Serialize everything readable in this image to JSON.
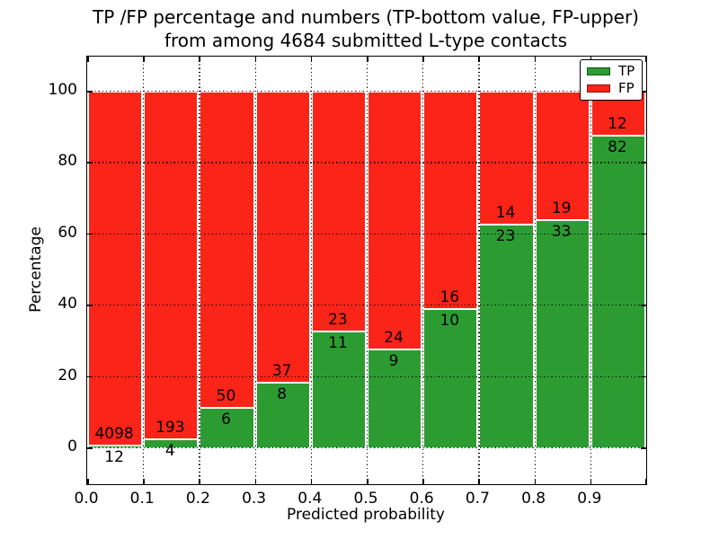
{
  "title": {
    "line1": "TP /FP percentage and numbers (TP-bottom value, FP-upper)",
    "line2": "from among 4684 submitted L-type contacts"
  },
  "axes": {
    "xlabel": "Predicted probability",
    "ylabel": "Percentage",
    "x_ticks": [
      {
        "label": "0.0",
        "value": 0.0
      },
      {
        "label": "0.1",
        "value": 0.1
      },
      {
        "label": "0.2",
        "value": 0.2
      },
      {
        "label": "0.3",
        "value": 0.3
      },
      {
        "label": "0.4",
        "value": 0.4
      },
      {
        "label": "0.5",
        "value": 0.5
      },
      {
        "label": "0.6",
        "value": 0.6
      },
      {
        "label": "0.7",
        "value": 0.7
      },
      {
        "label": "0.8",
        "value": 0.8
      },
      {
        "label": "0.9",
        "value": 0.9
      }
    ],
    "y_ticks": [
      {
        "label": "0",
        "value": 0
      },
      {
        "label": "20",
        "value": 20
      },
      {
        "label": "40",
        "value": 40
      },
      {
        "label": "60",
        "value": 60
      },
      {
        "label": "80",
        "value": 80
      },
      {
        "label": "100",
        "value": 100
      }
    ]
  },
  "legend": {
    "items": [
      {
        "label": "TP",
        "color": "#2c9c32"
      },
      {
        "label": "FP",
        "color": "#fa2418"
      }
    ]
  },
  "colors": {
    "tp": "#2c9c32",
    "fp": "#fa2418",
    "grid": "#000000",
    "bar_edge": "#ffffff"
  },
  "chart_data": {
    "type": "bar",
    "stacked": true,
    "normalized_to_percent": true,
    "title": "TP /FP percentage and numbers (TP-bottom value, FP-upper) from among 4684 submitted L-type contacts",
    "xlabel": "Predicted probability",
    "ylabel": "Percentage",
    "categories": [
      "0.0-0.1",
      "0.1-0.2",
      "0.2-0.3",
      "0.3-0.4",
      "0.4-0.5",
      "0.5-0.6",
      "0.6-0.7",
      "0.7-0.8",
      "0.8-0.9",
      "0.9-1.0"
    ],
    "bin_edges": [
      0.0,
      0.1,
      0.2,
      0.3,
      0.4,
      0.5,
      0.6,
      0.7,
      0.8,
      0.9,
      1.0
    ],
    "series": [
      {
        "name": "TP",
        "counts": [
          12,
          4,
          6,
          8,
          11,
          9,
          10,
          23,
          33,
          82
        ]
      },
      {
        "name": "FP",
        "counts": [
          4098,
          193,
          50,
          37,
          23,
          24,
          16,
          14,
          19,
          12
        ]
      }
    ],
    "tp_percent": [
      0.29,
      2.03,
      10.71,
      17.78,
      32.35,
      27.27,
      38.46,
      62.16,
      63.46,
      87.23
    ],
    "total_contacts": 4684,
    "xlim": [
      0.0,
      1.0
    ],
    "ylim": [
      -10.3,
      109.6
    ],
    "grid": true,
    "grid_style": "dotted",
    "legend_position": "upper right"
  }
}
